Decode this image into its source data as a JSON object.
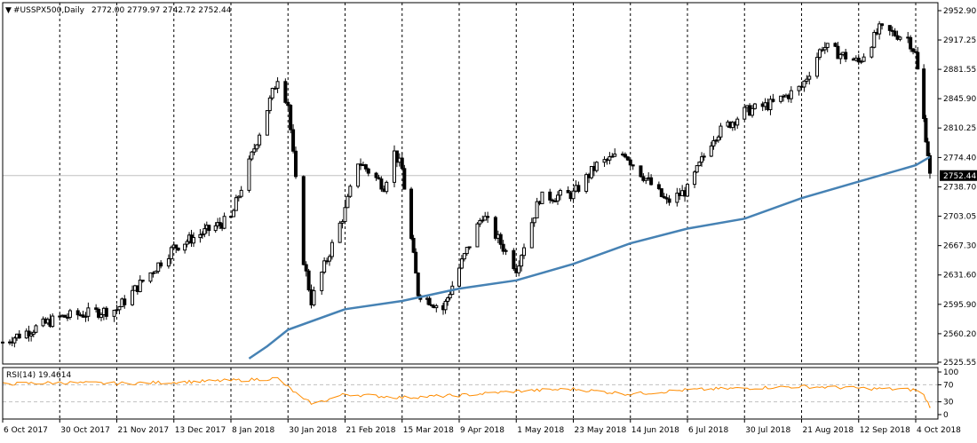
{
  "window": {
    "symbol_caption": "#USSPX500,Daily",
    "ohlc_caption": "2772.00 2779.97 2742.72 2752.44",
    "price_tag": "2752.44"
  },
  "chart_data": [
    {
      "type": "line",
      "title": "",
      "y_range": [
        2525.55,
        2952.9
      ],
      "price_ticks": [
        "2952.90",
        "2917.25",
        "2881.55",
        "2845.90",
        "2810.25",
        "2774.40",
        "2738.70",
        "2703.05",
        "2667.30",
        "2631.60",
        "2595.90",
        "2560.20",
        "2525.55"
      ],
      "x_labels": [
        "6 Oct 2017",
        "30 Oct 2017",
        "21 Nov 2017",
        "13 Dec 2017",
        "8 Jan 2018",
        "30 Jan 2018",
        "21 Feb 2018",
        "15 Mar 2018",
        "9 Apr 2018",
        "1 May 2018",
        "23 May 2018",
        "14 Jun 2018",
        "6 Jul 2018",
        "30 Jul 2018",
        "21 Aug 2018",
        "12 Sep 2018",
        "4 Oct 2018"
      ],
      "last_price": 2752.44,
      "colors": {
        "candles": "#000000",
        "moving_average": "#4682b4",
        "grid": "#000000",
        "price_line": "#c0c0c0"
      },
      "grid": true,
      "series": [
        {
          "kind": "candlestick_close",
          "x": [
            "6 Oct 2017",
            "30 Oct 2017",
            "21 Nov 2017",
            "13 Dec 2017",
            "8 Jan 2018",
            "26 Jan 2018",
            "30 Jan 2018",
            "5 Feb 2018",
            "8 Feb 2018",
            "21 Feb 2018",
            "26 Feb 2018",
            "8 Mar 2018",
            "12 Mar 2018",
            "15 Mar 2018",
            "22 Mar 2018",
            "2 Apr 2018",
            "9 Apr 2018",
            "18 Apr 2018",
            "1 May 2018",
            "10 May 2018",
            "23 May 2018",
            "1 Jun 2018",
            "12 Jun 2018",
            "14 Jun 2018",
            "28 Jun 2018",
            "6 Jul 2018",
            "17 Jul 2018",
            "30 Jul 2018",
            "10 Aug 2018",
            "21 Aug 2018",
            "29 Aug 2018",
            "12 Sep 2018",
            "20 Sep 2018",
            "1 Oct 2018",
            "4 Oct 2018",
            "10 Oct 2018",
            "11 Oct 2018"
          ],
          "values": [
            2550,
            2580,
            2590,
            2665,
            2700,
            2872,
            2840,
            2650,
            2600,
            2710,
            2770,
            2740,
            2780,
            2760,
            2610,
            2590,
            2640,
            2705,
            2640,
            2725,
            2730,
            2765,
            2780,
            2770,
            2720,
            2735,
            2800,
            2830,
            2840,
            2860,
            2910,
            2890,
            2930,
            2920,
            2900,
            2780,
            2752
          ]
        },
        {
          "name": "",
          "kind": "moving_average",
          "x": [
            "9 Jan 2018",
            "15 Jan 2018",
            "22 Jan 2018",
            "30 Jan 2018",
            "21 Feb 2018",
            "15 Mar 2018",
            "9 Apr 2018",
            "1 May 2018",
            "23 May 2018",
            "14 Jun 2018",
            "6 Jul 2018",
            "30 Jul 2018",
            "21 Aug 2018",
            "12 Sep 2018",
            "4 Oct 2018",
            "11 Oct 2018"
          ],
          "values": [
            2520,
            2530,
            2545,
            2565,
            2590,
            2600,
            2615,
            2625,
            2645,
            2670,
            2688,
            2700,
            2725,
            2745,
            2765,
            2775
          ]
        }
      ]
    },
    {
      "type": "line",
      "title": "RSI(14) 19.4614",
      "y_range": [
        0,
        100
      ],
      "y_ticks": [
        "100",
        "70",
        "30",
        "0"
      ],
      "levels": [
        70,
        30
      ],
      "colors": {
        "line": "#ff8c00",
        "levels": "#c0c0c0"
      },
      "series": [
        {
          "name": "RSI(14)",
          "x": [
            "6 Oct 2017",
            "30 Oct 2017",
            "21 Nov 2017",
            "13 Dec 2017",
            "8 Jan 2018",
            "26 Jan 2018",
            "5 Feb 2018",
            "9 Feb 2018",
            "21 Feb 2018",
            "15 Mar 2018",
            "9 Apr 2018",
            "1 May 2018",
            "23 May 2018",
            "14 Jun 2018",
            "6 Jul 2018",
            "30 Jul 2018",
            "21 Aug 2018",
            "12 Sep 2018",
            "4 Oct 2018",
            "8 Oct 2018",
            "11 Oct 2018"
          ],
          "values": [
            72,
            75,
            73,
            76,
            80,
            85,
            35,
            25,
            48,
            40,
            45,
            55,
            60,
            48,
            58,
            62,
            66,
            62,
            58,
            45,
            19.46
          ]
        }
      ]
    }
  ]
}
